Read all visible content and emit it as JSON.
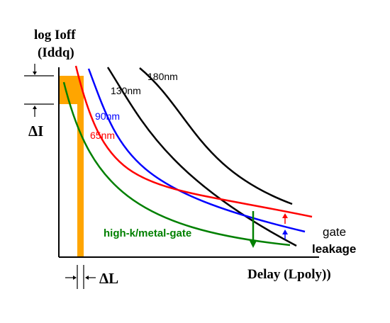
{
  "chart_data": {
    "type": "line",
    "ylabel_line1": "log Ioff",
    "ylabel_line2": "(Iddq)",
    "xlabel": "Delay (Lpoly))",
    "delta_i_label": "ΔI",
    "delta_l_label": "ΔL",
    "annotation_gate": "gate",
    "annotation_leakage": "leakage",
    "series": [
      {
        "name": "180nm",
        "color": "#000000",
        "label_color": "#000000"
      },
      {
        "name": "130nm",
        "color": "#000000",
        "label_color": "#000000"
      },
      {
        "name": "90nm",
        "color": "#0000ff",
        "label_color": "#0000ff"
      },
      {
        "name": "65nm",
        "color": "#ff0000",
        "label_color": "#ff0000"
      },
      {
        "name": "high-k/metal-gate",
        "color": "#008000",
        "label_color": "#008000"
      }
    ],
    "highlight_color": "#ffa500",
    "grid": false,
    "axis_ticks": false
  }
}
